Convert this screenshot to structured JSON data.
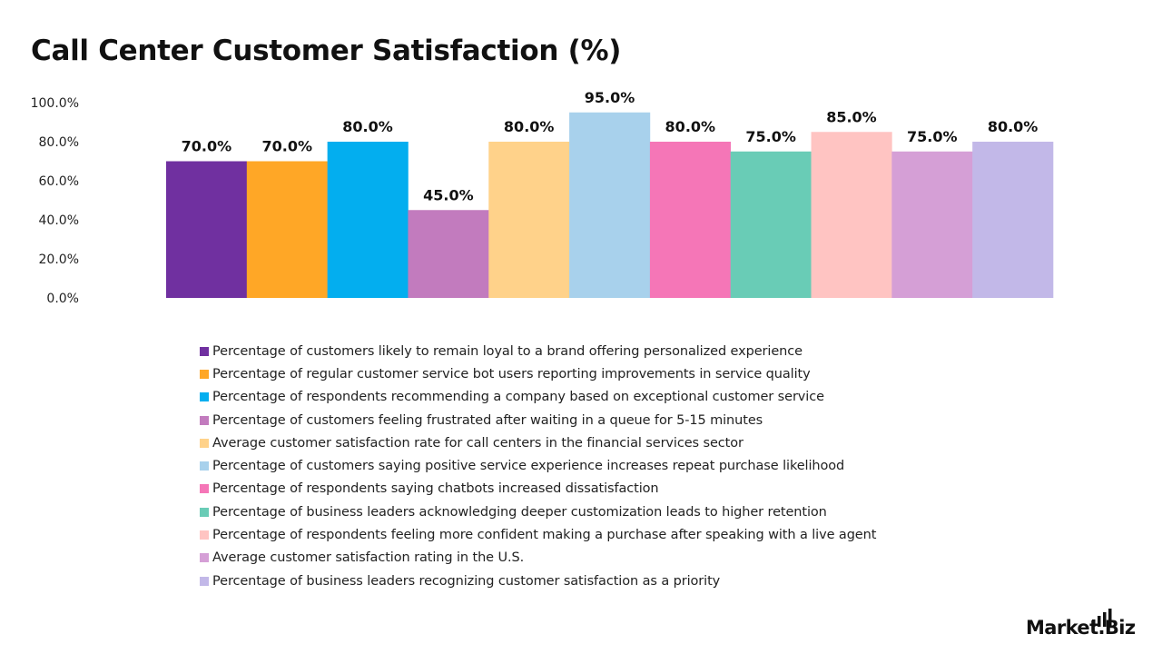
{
  "chart_data": {
    "type": "bar",
    "title": "Call Center Customer Satisfaction (%)",
    "xlabel": "",
    "ylabel": "",
    "ylim": [
      0,
      100
    ],
    "yticks": [
      "0.0%",
      "20.0%",
      "40.0%",
      "60.0%",
      "80.0%",
      "100.0%"
    ],
    "grid": false,
    "legend_position": "bottom",
    "series": [
      {
        "name": "Percentage of customers likely to remain loyal to a brand offering personalized experience",
        "value": 70,
        "label": "70.0%",
        "color": "#7030A0"
      },
      {
        "name": "Percentage of regular customer service bot users reporting improvements in service quality",
        "value": 70,
        "label": "70.0%",
        "color": "#FFA726"
      },
      {
        "name": "Percentage of respondents recommending a company based on exceptional customer service",
        "value": 80,
        "label": "80.0%",
        "color": "#03AEEF"
      },
      {
        "name": "Percentage of customers feeling frustrated after waiting in a queue for 5-15 minutes",
        "value": 45,
        "label": "45.0%",
        "color": "#C27BBE"
      },
      {
        "name": "Average customer satisfaction rate for call centers in the financial services sector",
        "value": 80,
        "label": "80.0%",
        "color": "#FFD28A"
      },
      {
        "name": "Percentage of customers saying positive service experience increases repeat purchase likelihood",
        "value": 95,
        "label": "95.0%",
        "color": "#A8D1EC"
      },
      {
        "name": "Percentage of respondents saying chatbots increased dissatisfaction",
        "value": 80,
        "label": "80.0%",
        "color": "#F576B7"
      },
      {
        "name": "Percentage of business leaders acknowledging deeper customization leads to higher retention",
        "value": 75,
        "label": "75.0%",
        "color": "#69CCB6"
      },
      {
        "name": "Percentage of respondents feeling more confident making a purchase after speaking with a live agent",
        "value": 85,
        "label": "85.0%",
        "color": "#FFC4C2"
      },
      {
        "name": "Average customer satisfaction rating in the U.S.",
        "value": 75,
        "label": "75.0%",
        "color": "#D59FD6"
      },
      {
        "name": "Percentage of business leaders recognizing customer satisfaction as a priority",
        "value": 80,
        "label": "80.0%",
        "color": "#C2B8E8"
      }
    ]
  },
  "branding": {
    "logo_text": "Market.Biz",
    "logo_icon": "bar-chart-logo-icon"
  }
}
